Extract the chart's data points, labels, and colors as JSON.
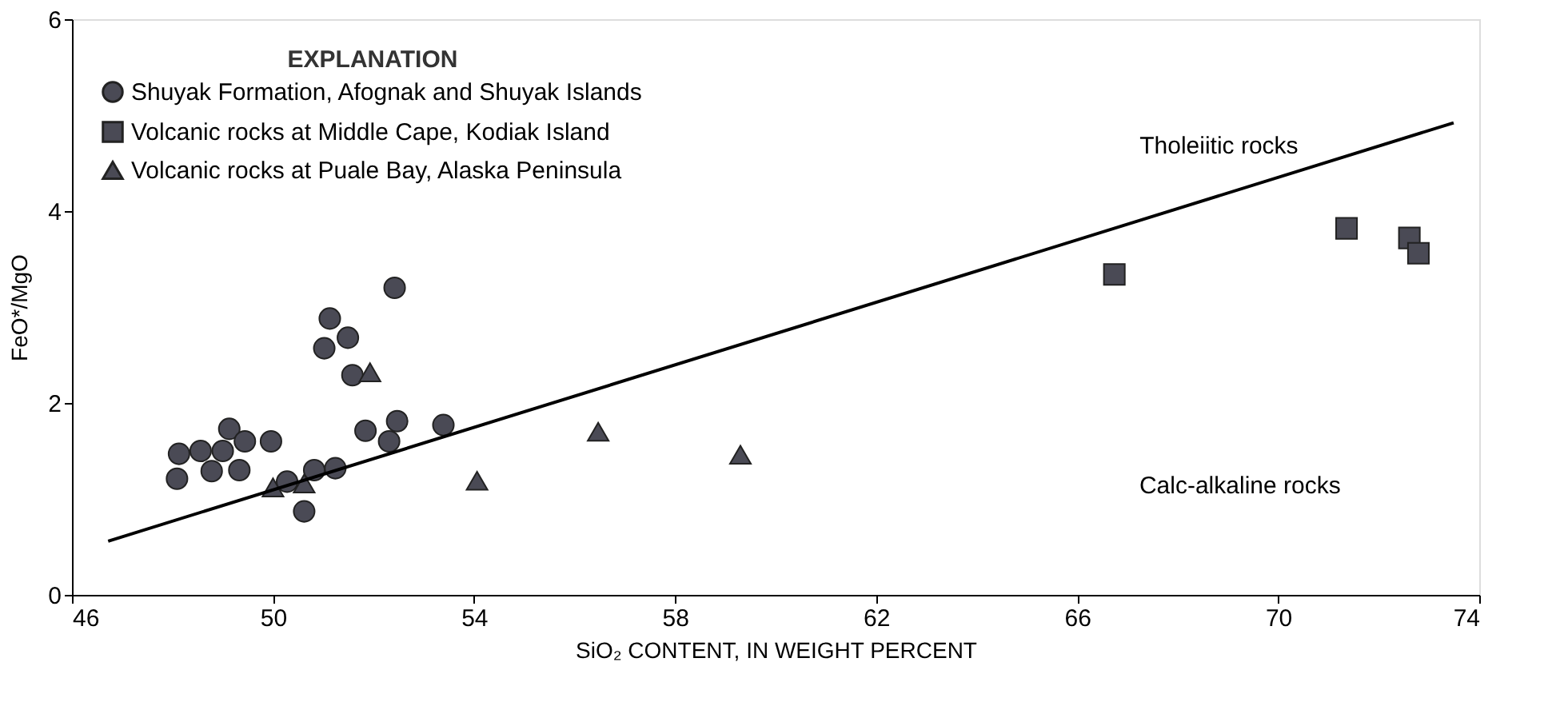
{
  "chart_data": {
    "type": "scatter",
    "xlabel": "SiO₂  CONTENT, IN WEIGHT PERCENT",
    "ylabel": "FeO*/MgO",
    "legend_title": "EXPLANATION",
    "legend": "top left",
    "grid": false,
    "xlim": [
      46,
      74
    ],
    "xticks": [
      46,
      50,
      54,
      58,
      62,
      66,
      70,
      74
    ],
    "ylim": [
      0,
      6
    ],
    "yticks": [
      0,
      2,
      4,
      6
    ],
    "annotations": [
      "Tholeiitic rocks",
      "Calc-alkaline rocks"
    ],
    "series": [
      {
        "name": "Shuyak Formation, Afognak and Shuyak Islands",
        "color": "#4a4a55",
        "marker": "circle",
        "x": [
          48.09,
          48.13,
          48.56,
          48.78,
          49.0,
          49.13,
          49.33,
          49.44,
          49.96,
          50.28,
          50.62,
          50.82,
          51.24,
          51.02,
          51.13,
          51.49,
          51.58,
          51.84,
          52.31,
          52.47,
          52.42,
          53.39
        ],
        "values": [
          1.21,
          1.47,
          1.5,
          1.29,
          1.5,
          1.73,
          1.3,
          1.6,
          1.6,
          1.18,
          0.87,
          1.3,
          1.32,
          2.57,
          2.88,
          2.68,
          2.29,
          1.71,
          1.6,
          1.81,
          3.2,
          1.77
        ]
      },
      {
        "name": "Volcanic rocks at Middle Cape, Kodiak Island",
        "color": "#4a4a55",
        "marker": "square",
        "x": [
          66.74,
          71.36,
          72.61,
          72.79
        ],
        "values": [
          3.34,
          3.82,
          3.72,
          3.56
        ]
      },
      {
        "name": "Volcanic rocks at Puale Bay, Alaska Peninsula",
        "color": "#4a4a55",
        "marker": "triangle",
        "x": [
          50.0,
          50.62,
          51.93,
          54.06,
          56.47,
          59.3
        ],
        "values": [
          1.12,
          1.16,
          2.32,
          1.19,
          1.7,
          1.46
        ]
      },
      {
        "type": "line",
        "color": "#000000",
        "x": [
          46.72,
          73.49
        ],
        "values": [
          0.56,
          4.92
        ],
        "line_style": "solid"
      }
    ]
  }
}
